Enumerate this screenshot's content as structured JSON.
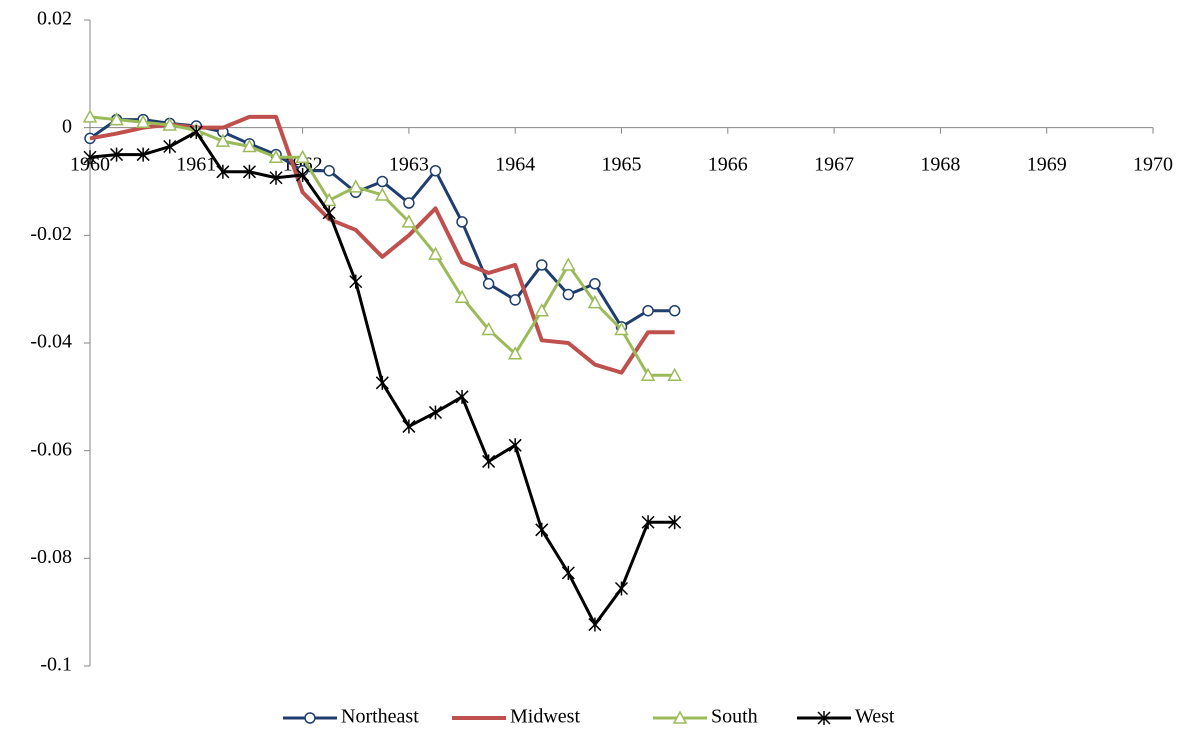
{
  "chart_data": {
    "type": "line",
    "x": [
      1960,
      1960.25,
      1960.5,
      1960.75,
      1961,
      1961.25,
      1961.5,
      1961.75,
      1962,
      1962.25,
      1962.5,
      1962.75,
      1963,
      1963.25,
      1963.5,
      1963.75,
      1964,
      1964.25,
      1964.5,
      1964.75,
      1965,
      1965.25,
      1965.5
    ],
    "xlim": [
      1960,
      1970
    ],
    "xticks": [
      1960,
      1961,
      1962,
      1963,
      1964,
      1965,
      1966,
      1967,
      1968,
      1969,
      1970
    ],
    "ylim": [
      -0.1,
      0.02
    ],
    "yticks": [
      0.02,
      0,
      -0.02,
      -0.04,
      -0.06,
      -0.08,
      -0.1
    ],
    "legend": "bottom",
    "series": [
      {
        "name": "Northeast",
        "color": "#1f3e6e",
        "marker": "circle",
        "values": [
          -0.002,
          0.0015,
          0.0015,
          0.0008,
          0.0003,
          -0.0008,
          -0.003,
          -0.005,
          -0.008,
          -0.008,
          -0.012,
          -0.01,
          -0.014,
          -0.008,
          -0.0175,
          -0.029,
          -0.032,
          -0.0255,
          -0.031,
          -0.029,
          -0.037,
          -0.034,
          -0.034
        ]
      },
      {
        "name": "Midwest",
        "color": "#c0504d",
        "marker": "none",
        "values": [
          -0.002,
          -0.0011,
          0.0,
          0.0006,
          0.0,
          0.0,
          0.002,
          0.002,
          -0.012,
          -0.017,
          -0.019,
          -0.024,
          -0.02,
          -0.015,
          -0.025,
          -0.027,
          -0.0255,
          -0.0395,
          -0.04,
          -0.044,
          -0.0455,
          -0.038,
          -0.038
        ]
      },
      {
        "name": "South",
        "color": "#9bbb59",
        "marker": "triangle",
        "values": [
          0.002,
          0.0015,
          0.001,
          0.0005,
          -0.0005,
          -0.0025,
          -0.0035,
          -0.0055,
          -0.0055,
          -0.0135,
          -0.011,
          -0.0125,
          -0.0175,
          -0.0235,
          -0.0315,
          -0.0375,
          -0.042,
          -0.034,
          -0.0255,
          -0.0325,
          -0.0375,
          -0.046,
          -0.046
        ]
      },
      {
        "name": "West",
        "color": "#000000",
        "marker": "star",
        "values": [
          -0.0055,
          -0.005,
          -0.005,
          -0.0035,
          -0.0008,
          -0.0082,
          -0.0082,
          -0.0093,
          -0.0088,
          -0.0158,
          -0.0286,
          -0.0474,
          -0.0555,
          -0.0529,
          -0.05,
          -0.062,
          -0.059,
          -0.0747,
          -0.0827,
          -0.0923,
          -0.0856,
          -0.0733,
          -0.0733
        ]
      }
    ]
  }
}
